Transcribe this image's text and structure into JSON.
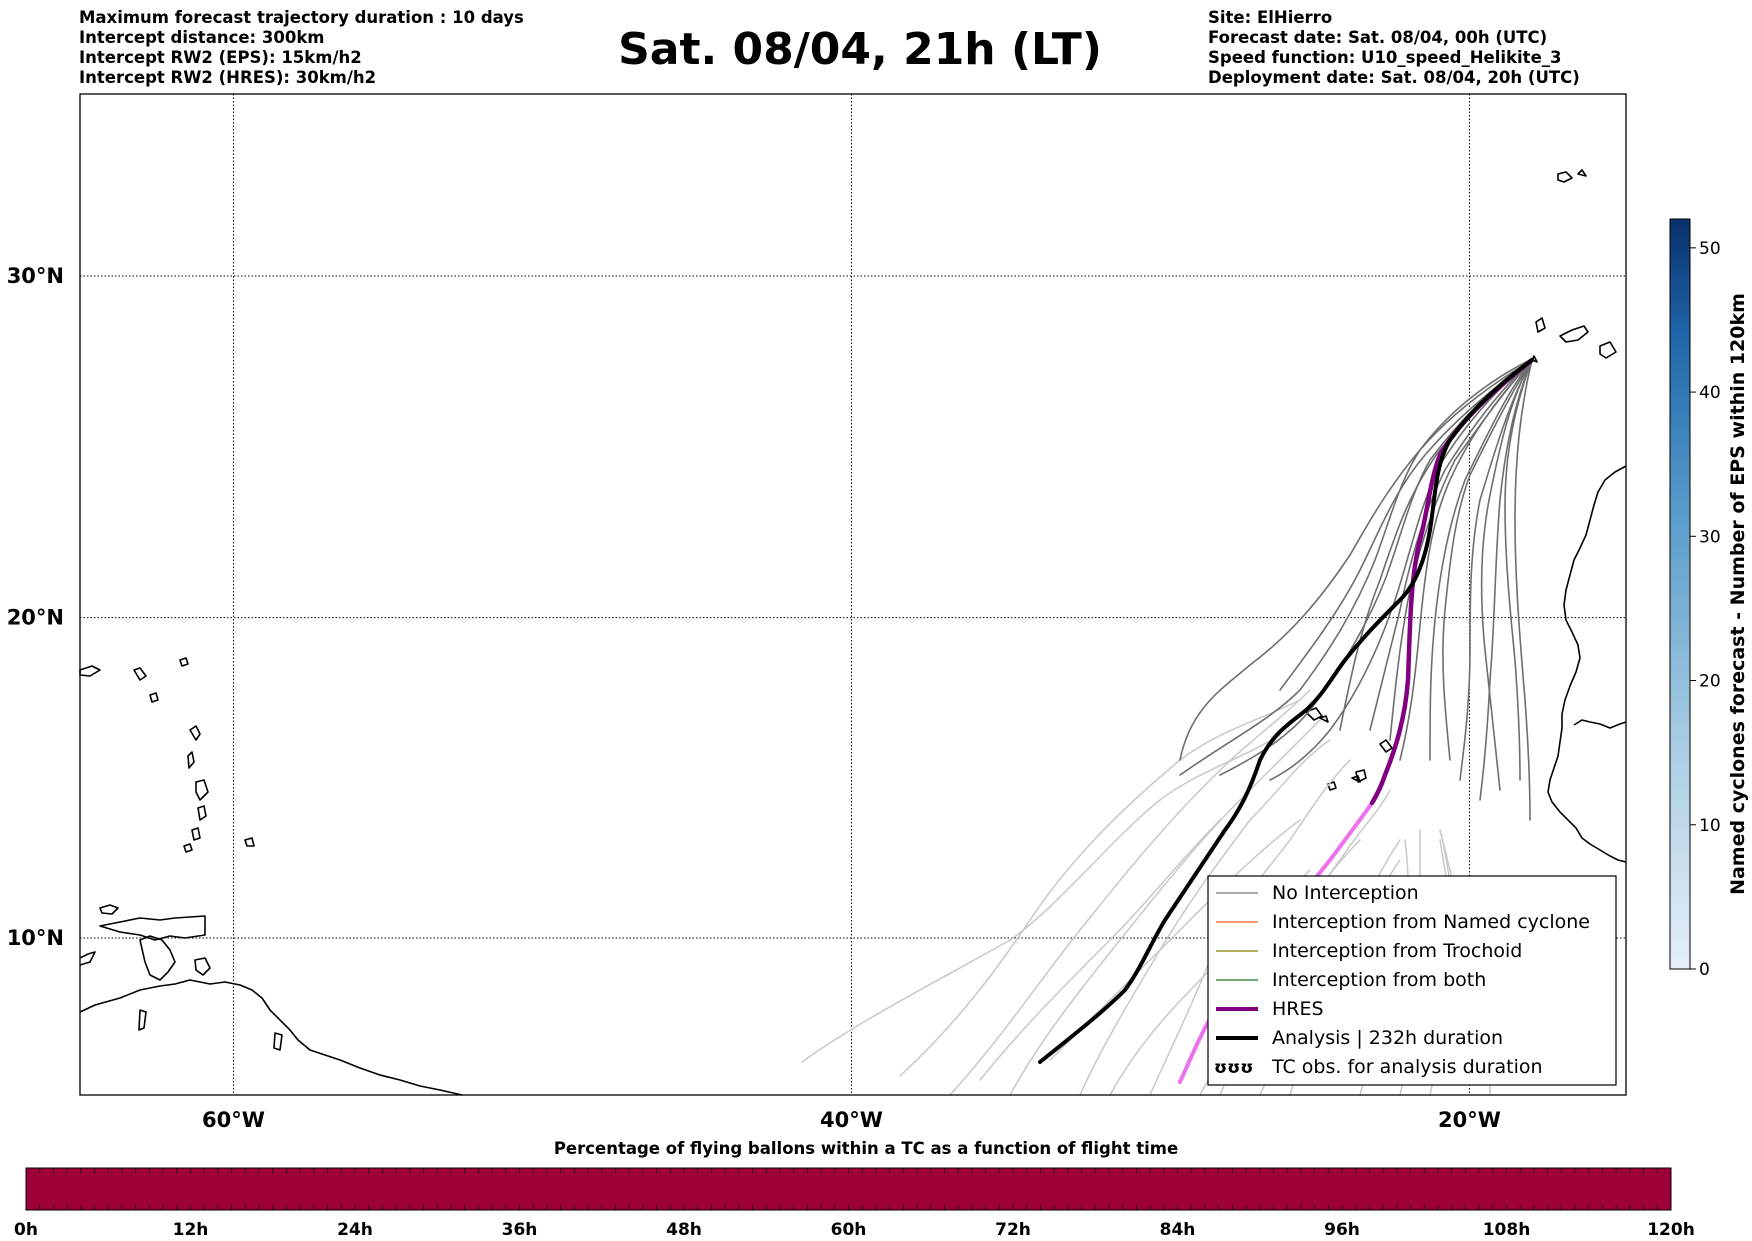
{
  "header_left": [
    "Maximum forecast trajectory duration : 10 days",
    "Intercept distance: 300km",
    "Intercept RW2 (EPS):  15km/h2",
    "Intercept RW2 (HRES): 30km/h2"
  ],
  "title": "Sat. 08/04, 21h (LT)",
  "header_right": [
    "Site: ElHierro",
    "Forecast date: Sat. 08/04, 00h (UTC)",
    "Speed function: U10_speed_Helikite_3",
    "Deployment date: Sat. 08/04, 20h (UTC)"
  ],
  "map": {
    "lat_labels": [
      "30°N",
      "20°N",
      "10°N"
    ],
    "lon_labels": [
      "60°W",
      "40°W",
      "20°W"
    ],
    "lat_values": [
      30,
      20,
      10
    ],
    "lon_values": [
      -60,
      -40,
      -20
    ],
    "extent": {
      "lon_min": -65,
      "lon_max": -15,
      "lat_min": 4.7,
      "lat_max": 34
    },
    "gridlines": true
  },
  "legend": {
    "placement": "lower-right",
    "items": [
      {
        "label": "No Interception",
        "color": "#777777",
        "style": "thin"
      },
      {
        "label": "Interception from Named cyclone",
        "color": "#ff5a1f",
        "style": "thin"
      },
      {
        "label": "Interception from Trochoid",
        "color": "#808000",
        "style": "thin"
      },
      {
        "label": "Interception from both",
        "color": "#1f7a1f",
        "style": "thin"
      },
      {
        "label": "HRES",
        "color": "#800080",
        "style": "thick"
      },
      {
        "label": "Analysis | 232h duration",
        "color": "#000000",
        "style": "thick"
      },
      {
        "label": "TC obs. for analysis duration",
        "color": "#000000",
        "style": "marker"
      }
    ]
  },
  "colorbar_right": {
    "label": "Named cyclones forecast - Number of EPS within 120km",
    "ticks": [
      "0",
      "10",
      "20",
      "30",
      "40",
      "50"
    ],
    "tick_values": [
      0,
      10,
      20,
      30,
      40,
      50
    ],
    "max": 52,
    "color_low": "#e5eef9",
    "color_high": "#08306b"
  },
  "colorbar_bottom": {
    "title": "Percentage of flying ballons within a TC as a function of flight time",
    "ticks": [
      "0h",
      "12h",
      "24h",
      "36h",
      "48h",
      "60h",
      "72h",
      "84h",
      "96h",
      "108h",
      "120h"
    ],
    "fill_color": "#9e003a"
  },
  "colors": {
    "eps_dark": "#6e6e6e",
    "eps_light": "#c8c8c8",
    "hres": "#800080",
    "hres_light": "#ee70ee",
    "analysis": "#000000"
  }
}
